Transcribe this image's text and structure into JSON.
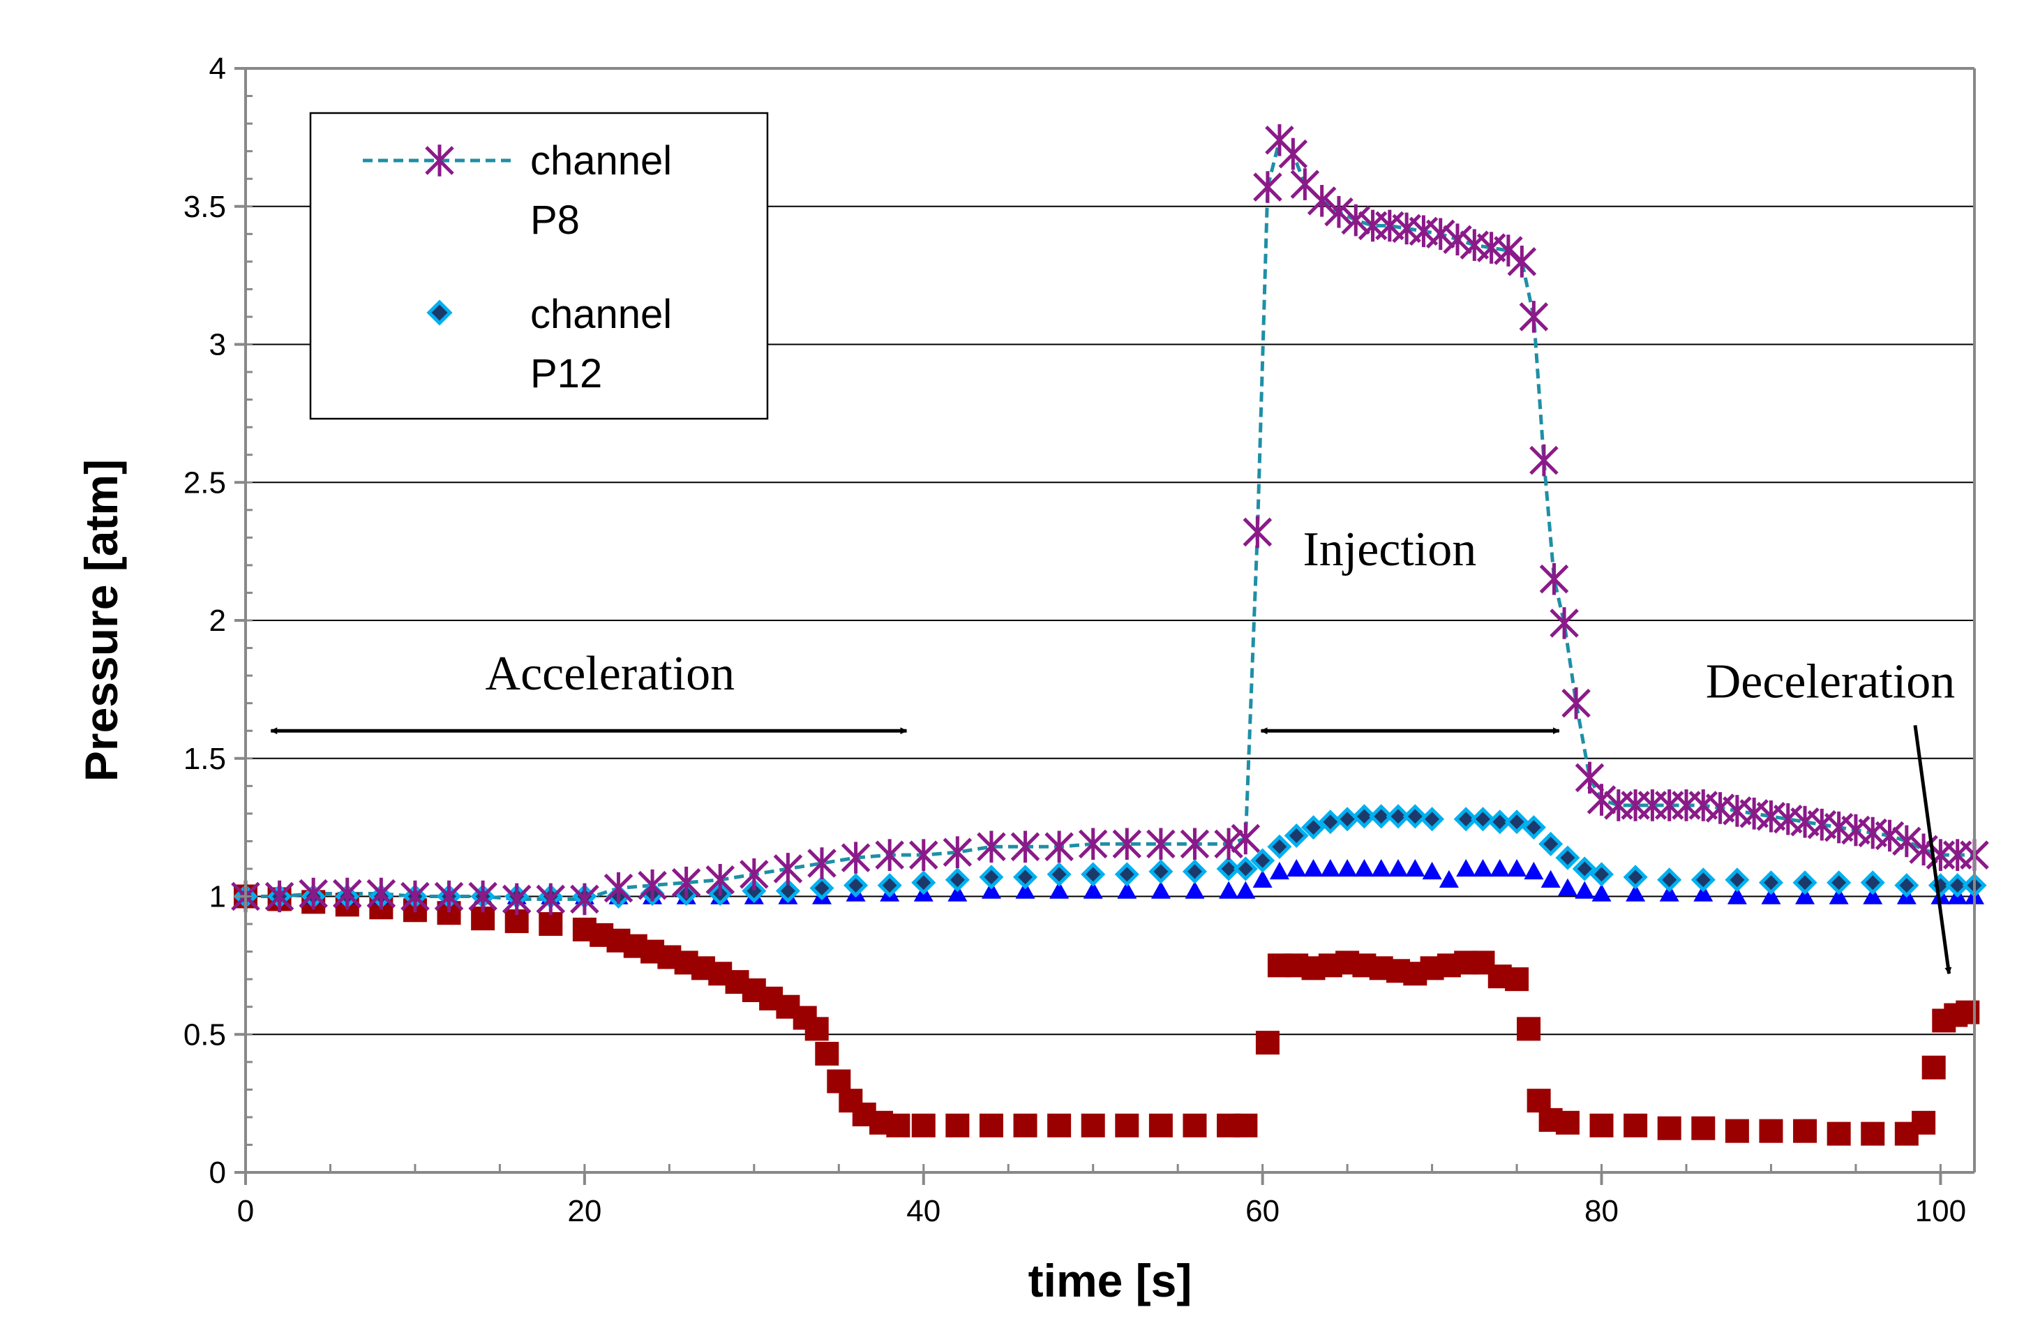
{
  "chart_data": {
    "type": "scatter",
    "title": "",
    "xlabel": "time [s]",
    "ylabel": "Pressure [atm]",
    "xlim": [
      0,
      102
    ],
    "ylim": [
      0,
      4
    ],
    "xticks": [
      "0",
      "20",
      "40",
      "60",
      "80",
      "100"
    ],
    "yticks": [
      "0",
      "0.5",
      "1",
      "1.5",
      "2",
      "2.5",
      "3",
      "3.5",
      "4"
    ],
    "grid": "horizontal",
    "legend_position": "top-left",
    "legend": [
      {
        "line1": "channel",
        "line2": "P8"
      },
      {
        "line1": "channel",
        "line2": "P12"
      }
    ],
    "annotations": [
      {
        "text": "Acceleration",
        "x": 21.5,
        "y": 1.75,
        "arrow_from": 1,
        "arrow_to": 39,
        "arrow_y": 1.6
      },
      {
        "text": "Injection",
        "x": 67.5,
        "y": 2.2,
        "arrow_from": 59.5,
        "arrow_to": 77.5,
        "arrow_y": 1.6
      },
      {
        "text": "Deceleration",
        "x": 93.5,
        "y": 1.72,
        "arrow_tail_x": 98.5,
        "arrow_tail_y": 1.62,
        "arrow_head_x": 100.5,
        "arrow_head_y": 0.72
      }
    ],
    "colors": {
      "p8_marker": "#8B1A89",
      "p8_line": "#1E8FA6",
      "p12_fill": "#00B0F0",
      "p12_outline": "#1B3A6B",
      "blue_series": "#0000FF",
      "red_series": "#9B0000"
    },
    "series": [
      {
        "name": "channel P8",
        "marker": "star",
        "x": [
          0,
          2,
          4,
          6,
          8,
          10,
          12,
          14,
          16,
          18,
          20,
          22,
          24,
          26,
          28,
          30,
          32,
          34,
          36,
          38,
          40,
          42,
          44,
          46,
          48,
          50,
          52,
          54,
          56,
          58,
          59,
          59.7,
          60.3,
          61,
          61.8,
          62.5,
          63.5,
          64.5,
          65.5,
          66.5,
          67.5,
          68.5,
          69.5,
          70.5,
          71.5,
          72.5,
          73.5,
          74.5,
          75.3,
          76,
          76.6,
          77.2,
          77.8,
          78.5,
          79.3,
          80,
          81,
          82,
          83,
          84,
          85,
          86,
          87,
          88,
          89,
          90,
          91,
          92,
          93,
          94,
          95,
          96,
          97,
          98,
          99,
          100,
          101,
          102
        ],
        "y": [
          1.0,
          1.0,
          1.01,
          1.01,
          1.01,
          1.0,
          1.0,
          1.0,
          0.99,
          0.99,
          0.99,
          1.03,
          1.04,
          1.05,
          1.06,
          1.08,
          1.1,
          1.12,
          1.14,
          1.15,
          1.15,
          1.16,
          1.18,
          1.18,
          1.18,
          1.19,
          1.19,
          1.19,
          1.19,
          1.19,
          1.21,
          2.32,
          3.57,
          3.74,
          3.69,
          3.58,
          3.52,
          3.48,
          3.45,
          3.43,
          3.43,
          3.42,
          3.41,
          3.4,
          3.38,
          3.36,
          3.35,
          3.34,
          3.3,
          3.1,
          2.58,
          2.15,
          1.99,
          1.7,
          1.43,
          1.35,
          1.33,
          1.33,
          1.33,
          1.33,
          1.33,
          1.33,
          1.32,
          1.31,
          1.3,
          1.29,
          1.28,
          1.27,
          1.26,
          1.25,
          1.24,
          1.23,
          1.22,
          1.2,
          1.17,
          1.15,
          1.15,
          1.15
        ]
      },
      {
        "name": "channel P12",
        "marker": "diamond",
        "x": [
          0,
          2,
          4,
          6,
          8,
          10,
          12,
          14,
          16,
          18,
          20,
          22,
          24,
          26,
          28,
          30,
          32,
          34,
          36,
          38,
          40,
          42,
          44,
          46,
          48,
          50,
          52,
          54,
          56,
          58,
          59,
          60,
          61,
          62,
          63,
          64,
          65,
          66,
          67,
          68,
          69,
          70,
          72,
          73,
          74,
          75,
          76,
          77,
          78,
          79,
          80,
          82,
          84,
          86,
          88,
          90,
          92,
          94,
          96,
          98,
          100,
          101,
          102
        ],
        "y": [
          1.0,
          1.0,
          1.0,
          1.0,
          1.0,
          1.0,
          1.0,
          1.0,
          1.0,
          1.0,
          1.0,
          1.0,
          1.01,
          1.01,
          1.01,
          1.02,
          1.02,
          1.03,
          1.04,
          1.04,
          1.05,
          1.06,
          1.07,
          1.07,
          1.08,
          1.08,
          1.08,
          1.09,
          1.09,
          1.1,
          1.1,
          1.13,
          1.18,
          1.22,
          1.25,
          1.27,
          1.28,
          1.29,
          1.29,
          1.29,
          1.29,
          1.28,
          1.28,
          1.28,
          1.27,
          1.27,
          1.25,
          1.19,
          1.14,
          1.1,
          1.08,
          1.07,
          1.06,
          1.06,
          1.06,
          1.05,
          1.05,
          1.05,
          1.05,
          1.04,
          1.04,
          1.04,
          1.04
        ]
      },
      {
        "name": "",
        "marker": "triangle",
        "x": [
          0,
          2,
          4,
          6,
          8,
          10,
          12,
          14,
          16,
          18,
          20,
          22,
          24,
          26,
          28,
          30,
          32,
          34,
          36,
          38,
          40,
          42,
          44,
          46,
          48,
          50,
          52,
          54,
          56,
          58,
          59,
          60,
          61,
          62,
          63,
          64,
          65,
          66,
          67,
          68,
          69,
          70,
          71,
          72,
          73,
          74,
          75,
          76,
          77,
          78,
          79,
          80,
          82,
          84,
          86,
          88,
          90,
          92,
          94,
          96,
          98,
          100,
          101,
          102
        ],
        "y": [
          1.0,
          1.0,
          1.0,
          1.0,
          1.0,
          1.0,
          1.0,
          1.0,
          1.0,
          1.0,
          1.0,
          1.0,
          1.0,
          1.0,
          1.0,
          1.0,
          1.0,
          1.0,
          1.01,
          1.01,
          1.01,
          1.01,
          1.02,
          1.02,
          1.02,
          1.02,
          1.02,
          1.02,
          1.02,
          1.02,
          1.02,
          1.06,
          1.09,
          1.1,
          1.1,
          1.1,
          1.1,
          1.1,
          1.1,
          1.1,
          1.1,
          1.09,
          1.06,
          1.1,
          1.1,
          1.1,
          1.1,
          1.09,
          1.06,
          1.03,
          1.02,
          1.01,
          1.01,
          1.01,
          1.01,
          1.0,
          1.0,
          1.0,
          1.0,
          1.0,
          1.0,
          1.0,
          1.0,
          1.0
        ]
      },
      {
        "name": "",
        "marker": "square",
        "x": [
          0,
          2,
          4,
          6,
          8,
          10,
          12,
          14,
          16,
          18,
          20,
          21,
          22,
          23,
          24,
          25,
          26,
          27,
          28,
          29,
          30,
          31,
          32,
          33,
          33.7,
          34.3,
          35,
          35.7,
          36.5,
          37.5,
          38.5,
          40,
          42,
          44,
          46,
          48,
          50,
          52,
          54,
          56,
          58,
          59,
          60.3,
          61,
          62,
          63,
          64,
          65,
          66,
          67,
          68,
          69,
          70,
          71,
          72,
          73,
          74,
          75,
          75.7,
          76.3,
          77,
          78,
          80,
          82,
          84,
          86,
          88,
          90,
          92,
          94,
          96,
          98,
          99,
          99.6,
          100.2,
          100.9,
          101.6
        ],
        "y": [
          1.0,
          0.99,
          0.98,
          0.97,
          0.96,
          0.95,
          0.94,
          0.92,
          0.91,
          0.9,
          0.88,
          0.86,
          0.84,
          0.82,
          0.8,
          0.78,
          0.76,
          0.74,
          0.72,
          0.69,
          0.66,
          0.63,
          0.6,
          0.56,
          0.52,
          0.43,
          0.33,
          0.26,
          0.21,
          0.18,
          0.17,
          0.17,
          0.17,
          0.17,
          0.17,
          0.17,
          0.17,
          0.17,
          0.17,
          0.17,
          0.17,
          0.17,
          0.47,
          0.75,
          0.75,
          0.74,
          0.75,
          0.76,
          0.75,
          0.74,
          0.73,
          0.72,
          0.74,
          0.75,
          0.76,
          0.76,
          0.71,
          0.7,
          0.52,
          0.26,
          0.19,
          0.18,
          0.17,
          0.17,
          0.16,
          0.16,
          0.15,
          0.15,
          0.15,
          0.14,
          0.14,
          0.14,
          0.18,
          0.38,
          0.55,
          0.57,
          0.58
        ]
      }
    ]
  }
}
